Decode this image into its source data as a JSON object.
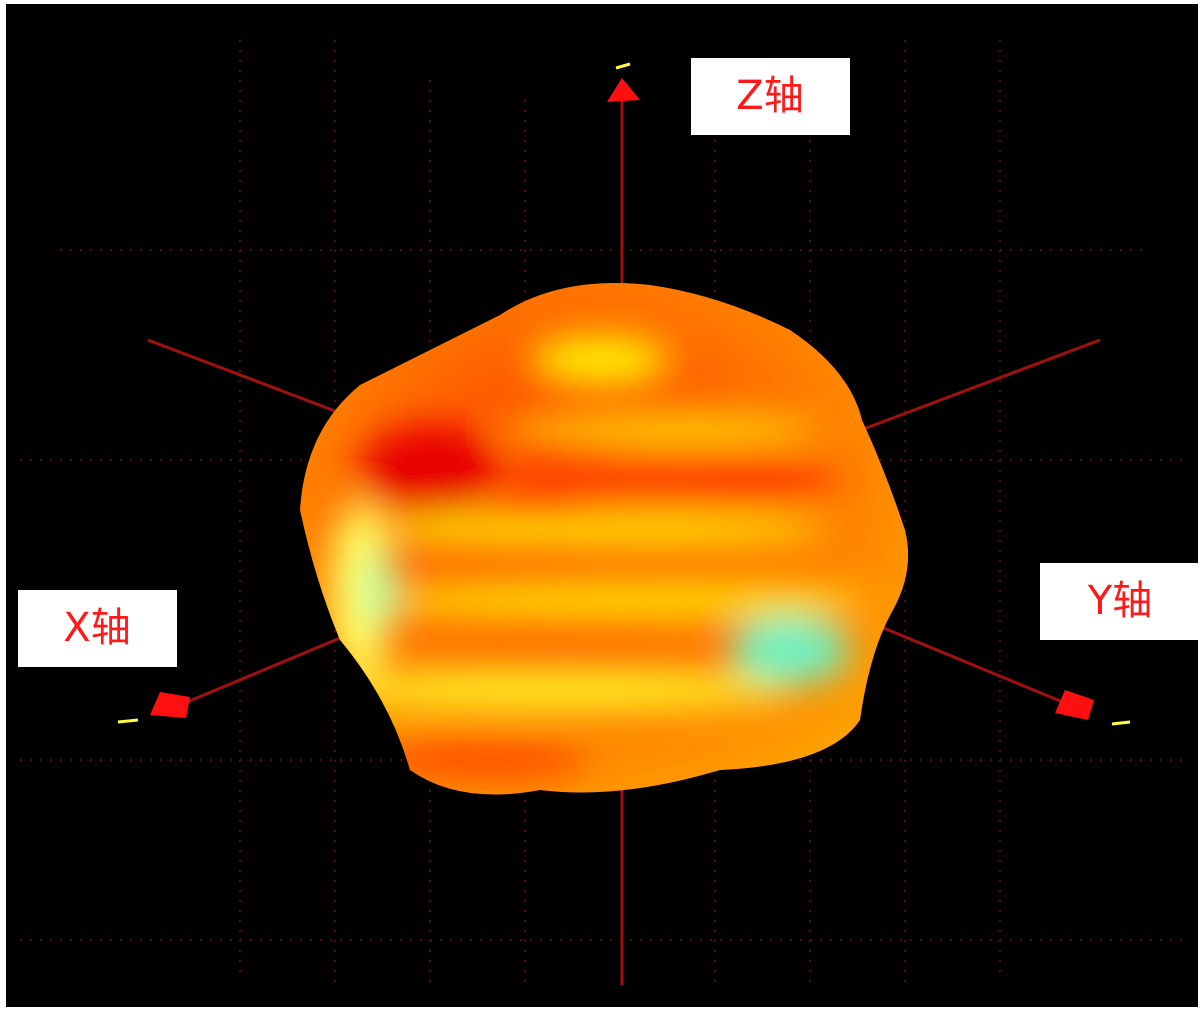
{
  "labels": {
    "z": "Z轴",
    "x": "X轴",
    "y": "Y轴"
  }
}
